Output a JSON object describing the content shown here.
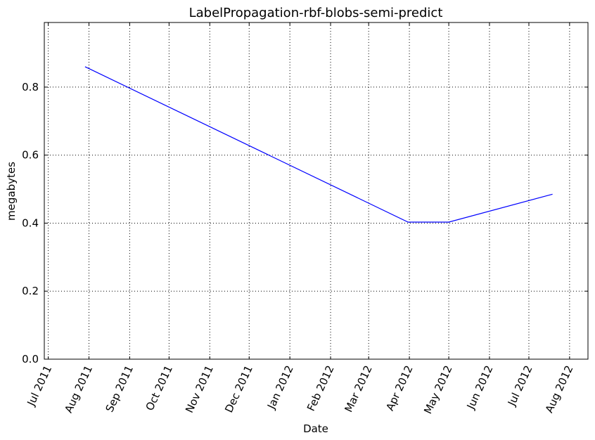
{
  "chart_data": {
    "type": "line",
    "title": "LabelPropagation-rbf-blobs-semi-predict",
    "xlabel": "Date",
    "ylabel": "megabytes",
    "x_ticks": [
      "Jul 2011",
      "Aug 2011",
      "Sep 2011",
      "Oct 2011",
      "Nov 2011",
      "Dec 2011",
      "Jan 2012",
      "Feb 2012",
      "Mar 2012",
      "Apr 2012",
      "May 2012",
      "Jun 2012",
      "Jul 2012",
      "Aug 2012"
    ],
    "x_tick_dates": [
      "2011-07-01",
      "2011-08-01",
      "2011-09-01",
      "2011-10-01",
      "2011-11-01",
      "2011-12-01",
      "2012-01-01",
      "2012-02-01",
      "2012-03-01",
      "2012-04-01",
      "2012-05-01",
      "2012-06-01",
      "2012-07-01",
      "2012-08-01"
    ],
    "x_range": [
      "2011-06-28",
      "2012-08-15"
    ],
    "y_ticks": [
      "0.0",
      "0.2",
      "0.4",
      "0.6",
      "0.8"
    ],
    "y_tick_values": [
      0.0,
      0.2,
      0.4,
      0.6,
      0.8
    ],
    "ylim": [
      0.0,
      0.99
    ],
    "grid": true,
    "series": [
      {
        "color": "#0000ff",
        "points": [
          {
            "x": "2011-07-29",
            "y": 0.86
          },
          {
            "x": "2012-03-31",
            "y": 0.403
          },
          {
            "x": "2012-05-01",
            "y": 0.403
          },
          {
            "x": "2012-07-19",
            "y": 0.485
          }
        ]
      }
    ]
  }
}
